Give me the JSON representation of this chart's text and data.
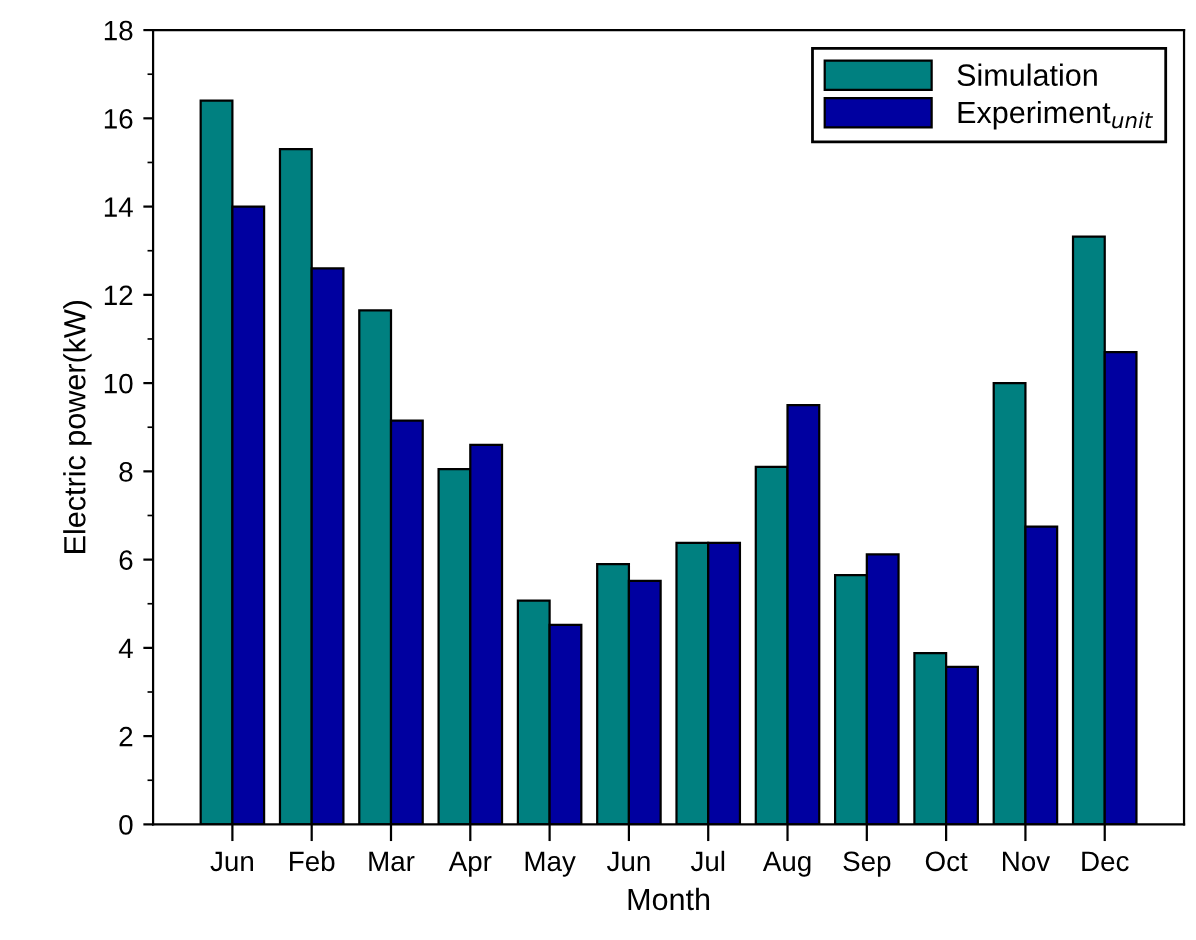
{
  "chart_data": {
    "type": "bar",
    "xlabel": "Month",
    "ylabel": "Electric power(kW)",
    "categories": [
      "Jun",
      "Feb",
      "Mar",
      "Apr",
      "May",
      "Jun",
      "Jul",
      "Aug",
      "Sep",
      "Oct",
      "Nov",
      "Dec"
    ],
    "series": [
      {
        "name": "Simulation",
        "color": "#008080",
        "values": [
          16.4,
          15.3,
          11.65,
          8.05,
          5.07,
          5.9,
          6.38,
          8.1,
          5.65,
          3.88,
          10.0,
          13.32
        ]
      },
      {
        "name": "Experiment$_{unit}$",
        "color": "#0000a0",
        "values": [
          14.0,
          12.6,
          9.15,
          8.6,
          4.52,
          5.52,
          6.38,
          9.5,
          6.12,
          3.57,
          6.75,
          10.7
        ]
      }
    ],
    "ylim": [
      0,
      18
    ],
    "yticks": [
      0,
      2,
      4,
      6,
      8,
      10,
      12,
      14,
      16,
      18
    ],
    "grid": false,
    "legend": "top right"
  }
}
